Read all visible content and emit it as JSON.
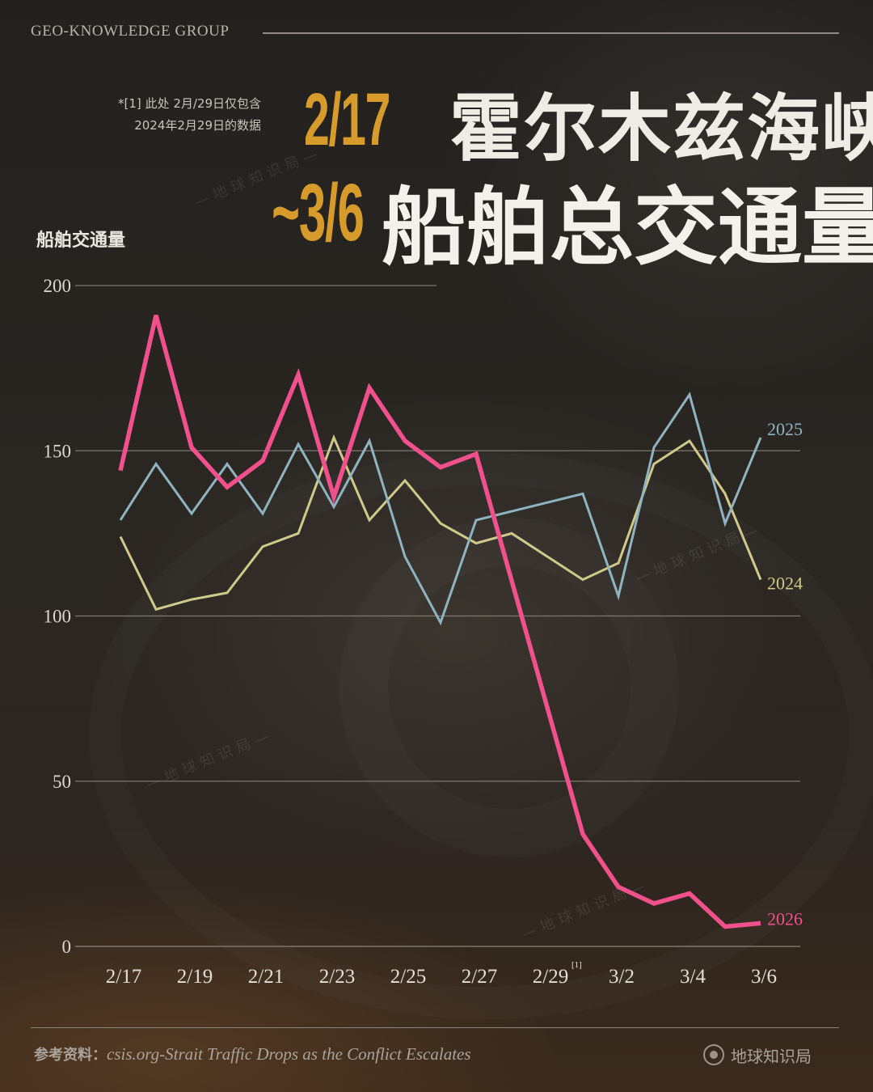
{
  "header": {
    "brand": "GEO-KNOWLEDGE GROUP",
    "note_line1": "*[1] 此处 2月/29日仅包含",
    "note_line2": "2024年2月29日的数据",
    "date_top": "2/17",
    "date_bottom": "~3/6",
    "title_line1": "霍尔木兹海峡",
    "title_line2": "船舶总交通量"
  },
  "watermark": "—地球知识局—",
  "footer": {
    "source_label": "参考资料：",
    "source_text": "csis.org-Strait Traffic Drops as the Conflict Escalates",
    "logo_text": "地球知识局"
  },
  "colors": {
    "2026": "#f0508c",
    "2025": "#8fb3c0",
    "2024": "#cfca8a",
    "accent": "#d79b2b",
    "grid": "#8a857e"
  },
  "chart_data": {
    "type": "line",
    "ylabel": "船舶交通量",
    "xlabel": "",
    "ylim": [
      0,
      200
    ],
    "yticks": [
      0,
      50,
      100,
      150,
      200
    ],
    "x": [
      "2/17",
      "2/18",
      "2/19",
      "2/20",
      "2/21",
      "2/22",
      "2/23",
      "2/24",
      "2/25",
      "2/26",
      "2/27",
      "2/28",
      "2/29",
      "3/1",
      "3/2",
      "3/3",
      "3/4",
      "3/5",
      "3/6"
    ],
    "xtick_labels": [
      "2/17",
      "2/19",
      "2/21",
      "2/23",
      "2/25",
      "2/27",
      "2/29",
      "3/2",
      "3/4",
      "3/6"
    ],
    "xtick_footnote": "[1]",
    "grid": true,
    "series": [
      {
        "name": "2026",
        "values": [
          144,
          191,
          151,
          139,
          147,
          173,
          136,
          169,
          153,
          145,
          149,
          null,
          null,
          34,
          18,
          13,
          16,
          6,
          7
        ]
      },
      {
        "name": "2025",
        "values": [
          129,
          146,
          131,
          146,
          131,
          152,
          133,
          153,
          118,
          98,
          129,
          null,
          null,
          137,
          106,
          151,
          167,
          128,
          154
        ]
      },
      {
        "name": "2024",
        "values": [
          124,
          102,
          105,
          107,
          121,
          125,
          154,
          129,
          141,
          128,
          122,
          125,
          118,
          111,
          116,
          146,
          153,
          137,
          111
        ]
      }
    ]
  }
}
